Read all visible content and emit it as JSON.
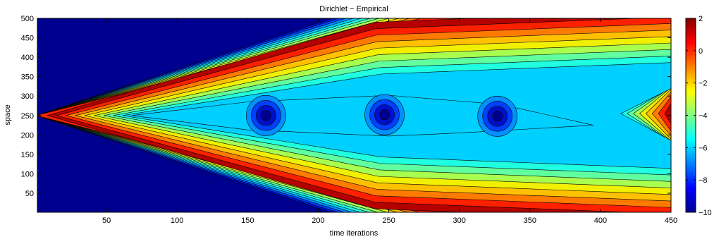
{
  "chart_data": {
    "type": "heatmap",
    "title": "Dirichlet − Empirical",
    "xlabel": "time iterations",
    "ylabel": "space",
    "xlim": [
      1,
      450
    ],
    "ylim": [
      1,
      500
    ],
    "xticks": [
      50,
      100,
      150,
      200,
      250,
      300,
      350,
      400,
      450
    ],
    "yticks": [
      50,
      100,
      150,
      200,
      250,
      300,
      350,
      400,
      450,
      500
    ],
    "colorbar": {
      "range": [
        -10,
        2
      ],
      "ticks": [
        2,
        0,
        -2,
        -4,
        -6,
        -8,
        -10
      ],
      "colormap": "jet"
    },
    "levels": [
      {
        "value": 2,
        "color": "#b40000"
      },
      {
        "value": 1,
        "color": "#ff2000"
      },
      {
        "value": 0,
        "color": "#ff7a00"
      },
      {
        "value": -1,
        "color": "#ffc000"
      },
      {
        "value": -2,
        "color": "#f0f000"
      },
      {
        "value": -3,
        "color": "#a8ff50"
      },
      {
        "value": -4,
        "color": "#60ffa0"
      },
      {
        "value": -5,
        "color": "#20ffe0"
      },
      {
        "value": -6,
        "color": "#00d0ff"
      },
      {
        "value": -7,
        "color": "#0090ff"
      },
      {
        "value": -8,
        "color": "#0040ff"
      },
      {
        "value": -9,
        "color": "#0010c8"
      },
      {
        "value": -10,
        "color": "#00008f"
      }
    ],
    "features": {
      "diamond_left_x": 8,
      "diamond_right_x": 450,
      "diamond_center_y": 250,
      "diamond_apex_x": 250,
      "diamond_top_y": 490,
      "diamond_bottom_y": 10,
      "minima": [
        {
          "x": 163,
          "y": 250,
          "value": -9
        },
        {
          "x": 247,
          "y": 252,
          "value": -9
        },
        {
          "x": 327,
          "y": 248,
          "value": -9
        }
      ]
    },
    "grid": false,
    "legend": "colorbar-right"
  }
}
